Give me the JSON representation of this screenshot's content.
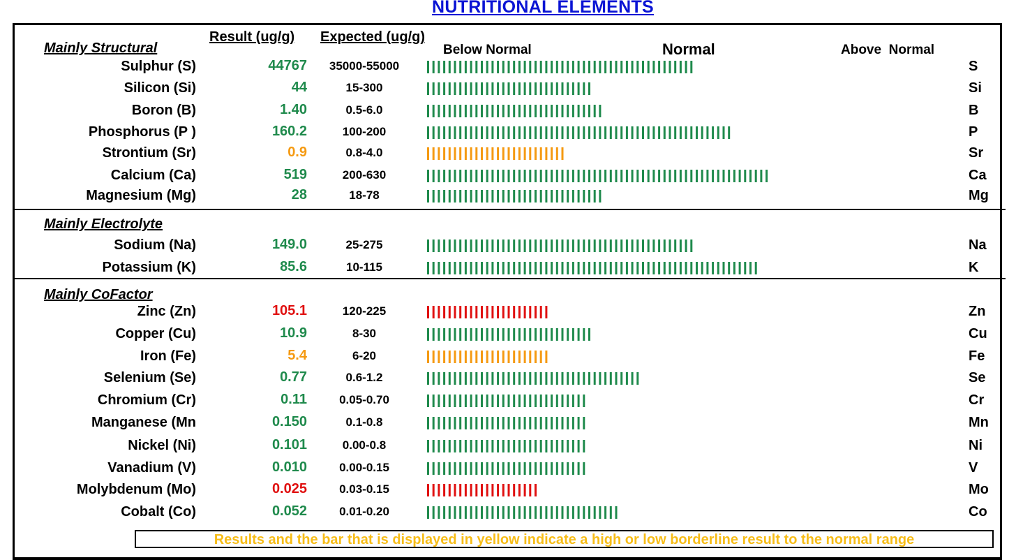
{
  "title": "NUTRITIONAL ELEMENTS",
  "headers": {
    "result": "Result (ug/g)",
    "expected": "Expected (ug/g)",
    "below": "Below Normal",
    "normal": "Normal",
    "above": "Above  Normal"
  },
  "colors": {
    "normal": "#1f8a4c",
    "borderline": "#f59a12",
    "abnormal": "#e01010",
    "title": "#0a14d4",
    "legend": "#f7bd18"
  },
  "legend": "Results and the bar that is displayed in yellow indicate a high or low borderline result to the normal range",
  "chart_data": {
    "type": "bar",
    "orientation": "horizontal",
    "title": "NUTRITIONAL ELEMENTS",
    "scale_labels": [
      "Below Normal",
      "Normal",
      "Above  Normal"
    ],
    "sections": [
      {
        "label": "Mainly Structural",
        "rows": [
          {
            "name": "Sulphur (S)",
            "result": "44767",
            "range": "35000-55000",
            "symbol": "S",
            "status": "normal",
            "bar_ticks": 50
          },
          {
            "name": "Silicon (Si)",
            "result": "44",
            "range": "15-300",
            "symbol": "Si",
            "status": "normal",
            "bar_ticks": 31
          },
          {
            "name": "Boron (B)",
            "result": "1.40",
            "range": "0.5-6.0",
            "symbol": "B",
            "status": "normal",
            "bar_ticks": 33
          },
          {
            "name": "Phosphorus (P )",
            "result": "160.2",
            "range": "100-200",
            "symbol": "P",
            "status": "normal",
            "bar_ticks": 57
          },
          {
            "name": "Strontium (Sr)",
            "result": "0.9",
            "range": "0.8-4.0",
            "symbol": "Sr",
            "status": "borderline",
            "bar_ticks": 26
          },
          {
            "name": "Calcium (Ca)",
            "result": "519",
            "range": "200-630",
            "symbol": "Ca",
            "status": "normal",
            "bar_ticks": 64
          },
          {
            "name": "Magnesium (Mg)",
            "result": "28",
            "range": "18-78",
            "symbol": "Mg",
            "status": "normal",
            "bar_ticks": 33
          }
        ]
      },
      {
        "label": "Mainly Electrolyte",
        "rows": [
          {
            "name": "Sodium (Na)",
            "result": "149.0",
            "range": "25-275",
            "symbol": "Na",
            "status": "normal",
            "bar_ticks": 50
          },
          {
            "name": "Potassium (K)",
            "result": "85.6",
            "range": "10-115",
            "symbol": "K",
            "status": "normal",
            "bar_ticks": 62
          }
        ]
      },
      {
        "label": "Mainly CoFactor",
        "rows": [
          {
            "name": "Zinc (Zn)",
            "result": "105.1",
            "range": "120-225",
            "symbol": "Zn",
            "status": "abnormal",
            "bar_ticks": 23
          },
          {
            "name": "Copper (Cu)",
            "result": "10.9",
            "range": "8-30",
            "symbol": "Cu",
            "status": "normal",
            "bar_ticks": 31
          },
          {
            "name": "Iron (Fe)",
            "result": "5.4",
            "range": "6-20",
            "symbol": "Fe",
            "status": "borderline",
            "bar_ticks": 23
          },
          {
            "name": "Selenium (Se)",
            "result": "0.77",
            "range": "0.6-1.2",
            "symbol": "Se",
            "status": "normal",
            "bar_ticks": 40
          },
          {
            "name": "Chromium (Cr)",
            "result": "0.11",
            "range": "0.05-0.70",
            "symbol": "Cr",
            "status": "normal",
            "bar_ticks": 30
          },
          {
            "name": "Manganese (Mn",
            "result": "0.150",
            "range": "0.1-0.8",
            "symbol": "Mn",
            "status": "normal",
            "bar_ticks": 30
          },
          {
            "name": "Nickel (Ni)",
            "result": "0.101",
            "range": "0.00-0.8",
            "symbol": "Ni",
            "status": "normal",
            "bar_ticks": 30
          },
          {
            "name": "Vanadium (V)",
            "result": "0.010",
            "range": "0.00-0.15",
            "symbol": "V",
            "status": "normal",
            "bar_ticks": 30
          },
          {
            "name": "Molybdenum (Mo)",
            "result": "0.025",
            "range": "0.03-0.15",
            "symbol": "Mo",
            "status": "abnormal",
            "bar_ticks": 21
          },
          {
            "name": "Cobalt (Co)",
            "result": "0.052",
            "range": "0.01-0.20",
            "symbol": "Co",
            "status": "normal",
            "bar_ticks": 36
          }
        ]
      }
    ]
  }
}
